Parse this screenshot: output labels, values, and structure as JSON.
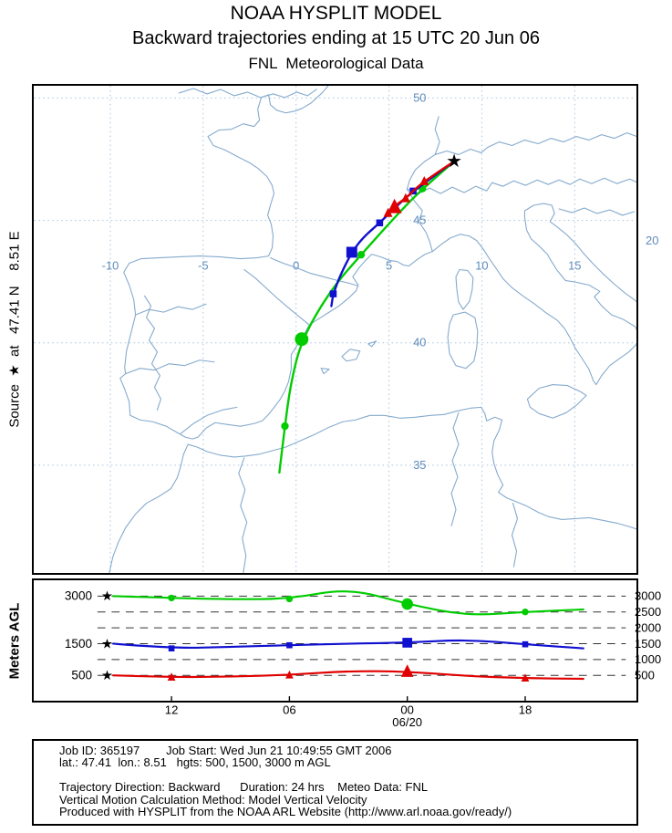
{
  "colors": {
    "green": "#00cc00",
    "blue": "#1010d0",
    "red": "#e00000",
    "coast": "#85aacd",
    "grid": "#a6c2dd",
    "map_label": "#5e8cbb"
  },
  "title": {
    "line1": "NOAA HYSPLIT MODEL",
    "line2": "Backward trajectories ending at 15 UTC 20 Jun 06",
    "line3": "FNL  Meteorological Data"
  },
  "map_panel": {
    "side_label": "Source  ★  at   47.41 N    8.51 E"
  },
  "profile_panel": {
    "side_label": "Meters AGL"
  },
  "footer": {
    "lines": [
      "Job ID: 365197        Job Start: Wed Jun 21 10:49:55 GMT 2006",
      "lat.: 47.41  lon.: 8.51   hgts: 500, 1500, 3000 m AGL",
      "",
      "Trajectory Direction: Backward      Duration: 24 hrs    Meteo Data: FNL",
      "Vertical Motion Calculation Method: Model Vertical Velocity",
      "Produced with HYSPLIT from the NOAA ARL Website (http://www.arl.noaa.gov/ready/)"
    ]
  },
  "chart_data": [
    {
      "type": "line",
      "name": "trajectory-map",
      "title": "Backward trajectories ending at 15 UTC 20 Jun 06",
      "source": {
        "lon": 8.51,
        "lat": 47.41
      },
      "xlim": [
        -14.1,
        18.3
      ],
      "ylim": [
        30.6,
        50.5
      ],
      "grid": {
        "lons": [
          -10,
          -5,
          0,
          5,
          10,
          15,
          20
        ],
        "lats": [
          35,
          40,
          45,
          50
        ]
      },
      "hours_back": [
        0,
        3,
        6,
        9,
        12,
        15,
        18,
        21,
        24
      ],
      "marker_hours_back": [
        3,
        9,
        15,
        21
      ],
      "major_hour_back": 15,
      "series": [
        {
          "name": "3000 m AGL",
          "color_key": "green",
          "marker": "circle",
          "lon": [
            8.51,
            6.8,
            5.4,
            3.5,
            1.9,
            0.3,
            -0.3,
            -0.6,
            -0.9
          ],
          "lat": [
            47.41,
            46.3,
            45.2,
            43.6,
            42.2,
            40.15,
            38.3,
            36.6,
            34.7
          ]
        },
        {
          "name": "1500 m AGL",
          "color_key": "blue",
          "marker": "square",
          "lon": [
            8.51,
            6.3,
            5.3,
            4.5,
            3.6,
            3.0,
            2.4,
            2.0,
            1.9
          ],
          "lat": [
            47.41,
            46.2,
            45.5,
            44.9,
            44.3,
            43.7,
            42.8,
            42.0,
            41.5
          ]
        },
        {
          "name": "500 m AGL",
          "color_key": "red",
          "marker": "triangle",
          "lon": [
            8.51,
            6.9,
            6.3,
            5.9,
            5.5,
            5.3,
            5.1,
            4.95,
            4.85
          ],
          "lat": [
            47.41,
            46.6,
            46.2,
            45.9,
            45.7,
            45.55,
            45.4,
            45.3,
            45.25
          ]
        }
      ]
    },
    {
      "type": "line",
      "name": "height-profile",
      "ylabel": "Meters AGL",
      "xlim": [
        -3.65,
        26.3
      ],
      "ylim": [
        -300,
        3500
      ],
      "hours_back": [
        0,
        3,
        6,
        9,
        12,
        15,
        18,
        21,
        24
      ],
      "x_ticks": [
        {
          "hour_back": 3,
          "label": "12"
        },
        {
          "hour_back": 9,
          "label": "06"
        },
        {
          "hour_back": 15,
          "label": "00"
        },
        {
          "hour_back": 21,
          "label": "18"
        }
      ],
      "x_date_label": {
        "hour_back": 15,
        "label": "06/20"
      },
      "y_gridlines": [
        500,
        1000,
        1500,
        2000,
        2500,
        3000
      ],
      "y_right_labels": [
        3000,
        2500,
        2000,
        1500,
        1000,
        500
      ],
      "marker_hours_back": [
        3,
        9,
        15,
        21
      ],
      "major_hour_back": 15,
      "series": [
        {
          "name": "3000",
          "color_key": "green",
          "marker": "circle",
          "values": [
            3000,
            2940,
            2900,
            2910,
            3250,
            2750,
            2380,
            2500,
            2580
          ]
        },
        {
          "name": "1500",
          "color_key": "blue",
          "marker": "square",
          "values": [
            1500,
            1350,
            1400,
            1450,
            1500,
            1530,
            1630,
            1480,
            1350
          ]
        },
        {
          "name": "500",
          "color_key": "red",
          "marker": "triangle",
          "values": [
            500,
            440,
            460,
            510,
            640,
            620,
            480,
            410,
            390
          ]
        }
      ]
    }
  ]
}
